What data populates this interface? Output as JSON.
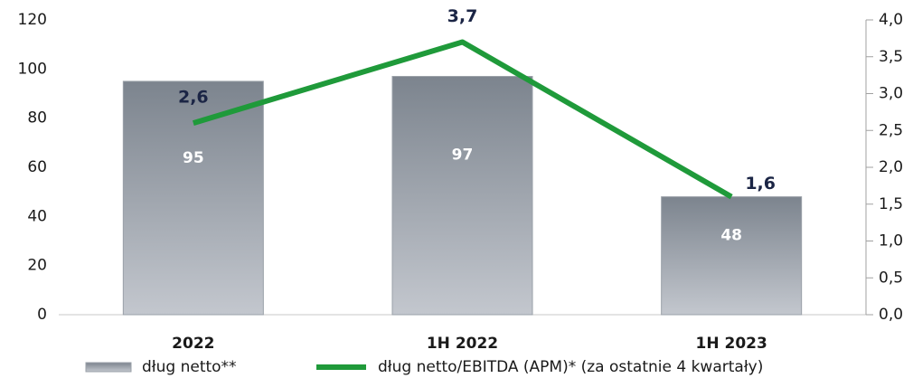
{
  "chart_data": {
    "type": "bar-line",
    "categories": [
      "2022",
      "1H 2022",
      "1H 2023"
    ],
    "series": [
      {
        "name": "dług netto**",
        "type": "bar",
        "color": "#7c848e",
        "values": [
          95,
          97,
          48
        ]
      },
      {
        "name": "dług netto/EBITDA (APM)* (za ostatnie 4 kwartały)",
        "type": "line",
        "axis": "y2",
        "color": "#1f9a3a",
        "values": [
          2.6,
          3.7,
          1.6
        ],
        "value_labels": [
          "2,6",
          "3,7",
          "1,6"
        ]
      }
    ],
    "ylim": [
      0,
      120
    ],
    "yticks": [
      0,
      20,
      40,
      60,
      80,
      100,
      120
    ],
    "y2lim": [
      0,
      4
    ],
    "y2ticks": [
      {
        "value": 0,
        "label": "0,0"
      },
      {
        "value": 0.5,
        "label": "0,5"
      },
      {
        "value": 1,
        "label": "1,0"
      },
      {
        "value": 1.5,
        "label": "1,5"
      },
      {
        "value": 2,
        "label": "2,0"
      },
      {
        "value": 2.5,
        "label": "2,5"
      },
      {
        "value": 3,
        "label": "3,0"
      },
      {
        "value": 3.5,
        "label": "3,5"
      },
      {
        "value": 4,
        "label": "4,0"
      }
    ],
    "legend": "bottom"
  }
}
